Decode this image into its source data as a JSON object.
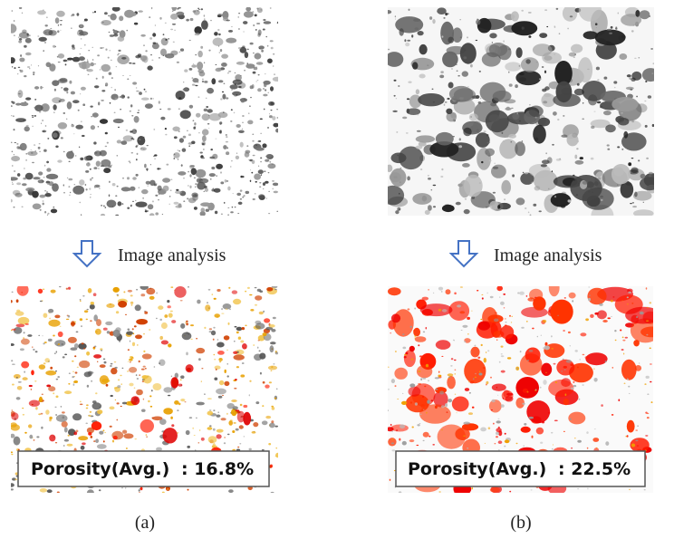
{
  "panels": [
    {
      "step": "Image analysis",
      "porosity_label": "Porosity(Avg.)",
      "porosity_value": ": 16.8%",
      "caption": "(a)"
    },
    {
      "step": "Image analysis",
      "porosity_label": "Porosity(Avg.)",
      "porosity_value": ": 22.5%",
      "caption": "(b)"
    }
  ]
}
